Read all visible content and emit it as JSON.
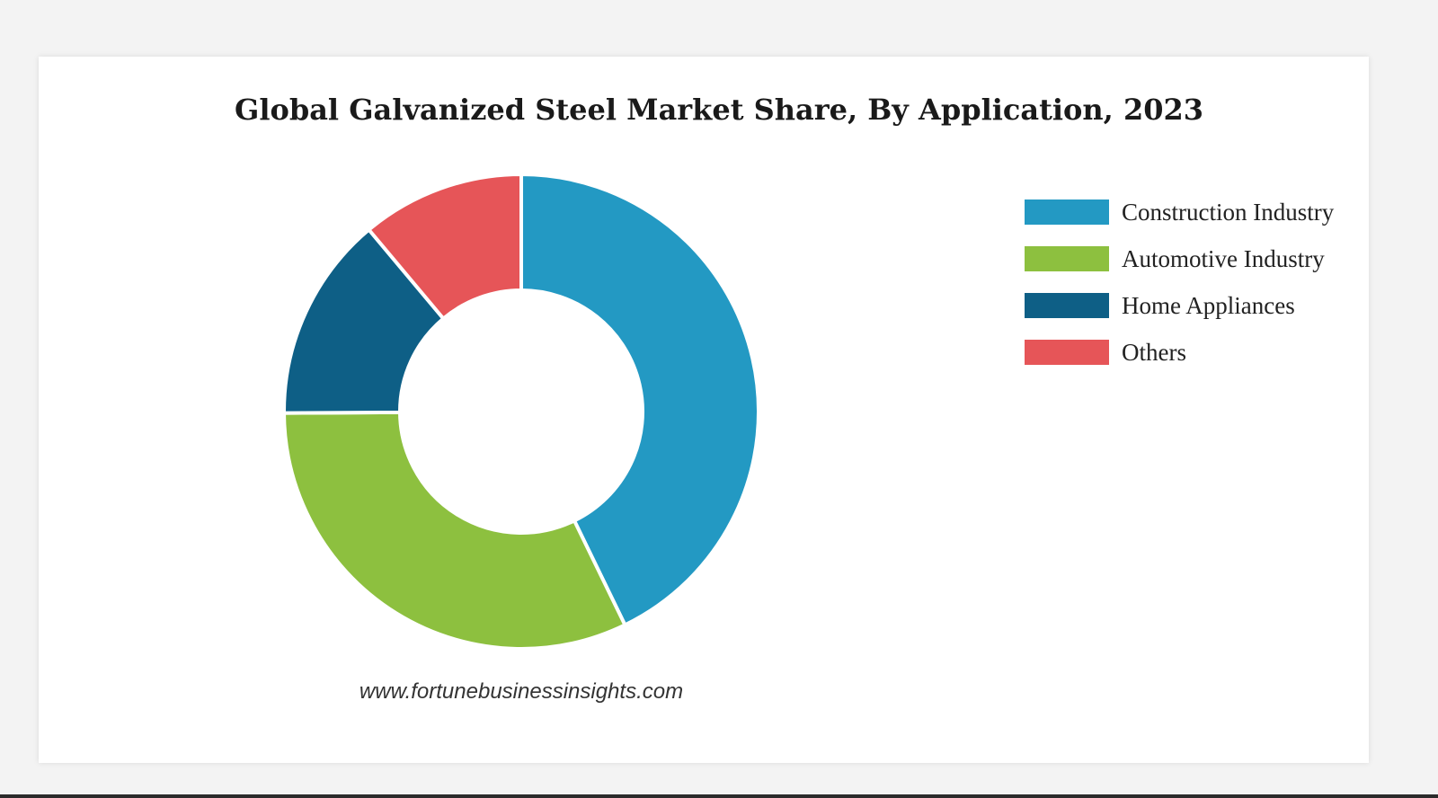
{
  "chart_data": {
    "type": "pie",
    "variant": "donut",
    "title": "Global Galvanized Steel Market Share, By Application, 2023",
    "categories": [
      "Construction Industry",
      "Automotive Industry",
      "Home Appliances",
      "Others"
    ],
    "values": [
      42.8,
      32.1,
      14.0,
      11.1
    ],
    "unit": "%",
    "colors": [
      "#2399c3",
      "#8dc03f",
      "#0e5f86",
      "#e65558"
    ],
    "legend_position": "right"
  },
  "source": "www.fortunebusinessinsights.com"
}
